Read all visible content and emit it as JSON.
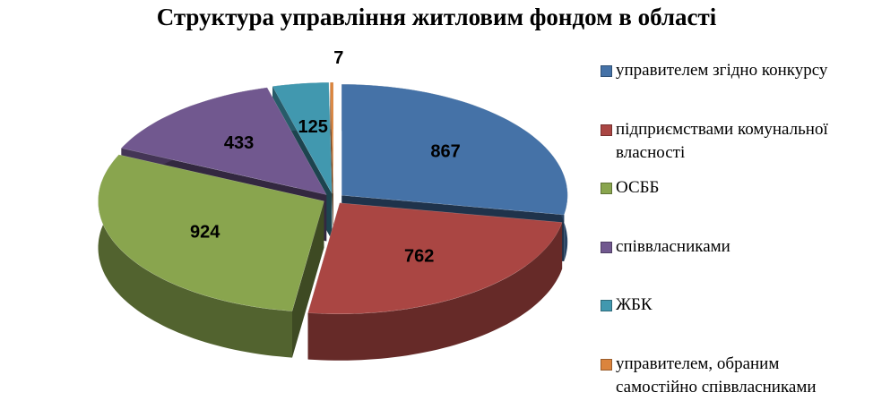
{
  "chart_data": {
    "type": "pie3d",
    "title": "Структура управління житловим фондом в області",
    "categories": [
      "управителем згідно конкурсу",
      "підприємствами комунальної власності",
      "ОСББ",
      "співвласниками",
      "ЖБК",
      "управителем, обраним самостійно співвласниками"
    ],
    "values": [
      867,
      762,
      924,
      433,
      125,
      7
    ],
    "colors": [
      "#4572A7",
      "#AA4643",
      "#89A54E",
      "#71588F",
      "#4198AF",
      "#DB843D"
    ],
    "legend": "right"
  }
}
